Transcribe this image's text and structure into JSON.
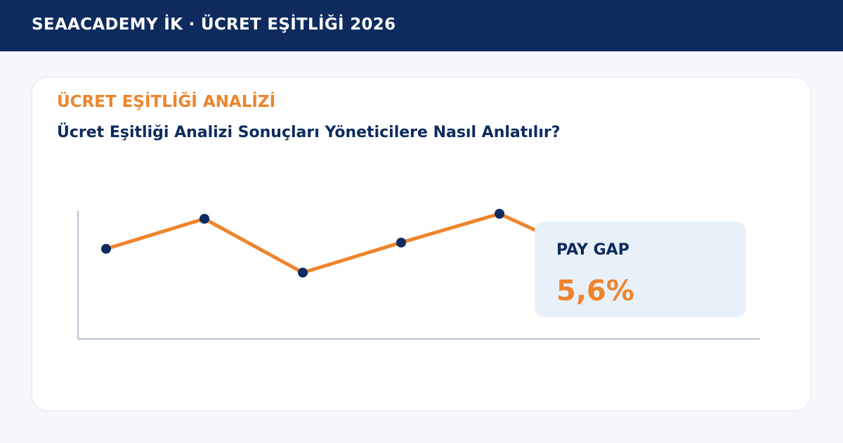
{
  "header": {
    "title": "SEAACADEMY İK · ÜCRET EŞİTLİĞİ 2026"
  },
  "card": {
    "eyebrow": "ÜCRET EŞİTLİĞİ ANALİZİ",
    "headline": "Ücret Eşitliği Analizi Sonuçları Yöneticilere Nasıl Anlatılır?"
  },
  "kpi": {
    "label": "PAY GAP",
    "value": "5,6%"
  },
  "colors": {
    "navy": "#0d2b5e",
    "accent": "#ee842c",
    "axis": "#b4c0d3",
    "kpi_bg": "#e8f0f9"
  },
  "chart_data": {
    "type": "line",
    "x": [
      1,
      2,
      3,
      4,
      5,
      6
    ],
    "series": [
      {
        "values": [
          72,
          96,
          53,
          77,
          100,
          64
        ]
      }
    ],
    "ylim": [
      0,
      110
    ],
    "grid": false,
    "legend": "none",
    "title": "",
    "xlabel": "",
    "ylabel": ""
  }
}
